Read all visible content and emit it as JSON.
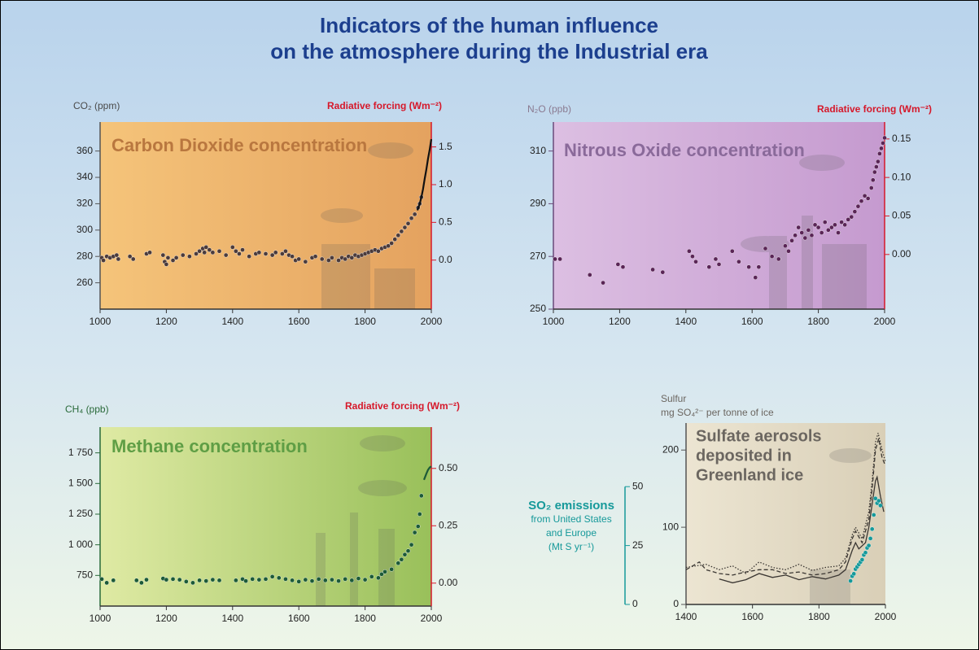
{
  "title": [
    "Indicators of the human influence",
    "on the atmosphere during the Industrial era"
  ],
  "chart_data": [
    {
      "type": "scatter",
      "title": "Carbon Dioxide concentration",
      "title_color": "#b9773f",
      "ylabel": "CO₂ (ppm)",
      "y2label": "Radiative forcing (Wm⁻²)",
      "xlim": [
        1000,
        2000
      ],
      "xticks": [
        1000,
        1200,
        1400,
        1600,
        1800,
        2000
      ],
      "ylim": [
        240,
        382
      ],
      "yticks": [
        260,
        280,
        300,
        320,
        340,
        360
      ],
      "y2lim": [
        -0.65,
        1.83
      ],
      "y2ticks": [
        {
          "value": 0,
          "label": "0.0"
        },
        {
          "value": 0.5,
          "label": "0.5"
        },
        {
          "value": 1,
          "label": "1.0"
        },
        {
          "value": 1.5,
          "label": "1.5"
        }
      ],
      "series": [
        {
          "marker": "dot",
          "color": "#4b3b3b",
          "x": [
            1005,
            1010,
            1020,
            1030,
            1040,
            1050,
            1055,
            1090,
            1100,
            1140,
            1150,
            1190,
            1195,
            1200,
            1205,
            1220,
            1230,
            1250,
            1270,
            1290,
            1300,
            1310,
            1315,
            1320,
            1330,
            1340,
            1360,
            1380,
            1400,
            1410,
            1420,
            1430,
            1450,
            1470,
            1480,
            1500,
            1520,
            1530,
            1550,
            1560,
            1570,
            1580,
            1590,
            1600,
            1620,
            1640,
            1650,
            1670,
            1690,
            1700,
            1720,
            1730,
            1740,
            1750,
            1760,
            1770,
            1780,
            1790,
            1800,
            1810,
            1820,
            1830,
            1840,
            1850,
            1860,
            1870,
            1880,
            1890,
            1900,
            1910,
            1920,
            1930,
            1940,
            1950,
            1960,
            1965,
            1970
          ],
          "values": [
            279,
            277,
            280,
            279,
            280,
            281,
            278,
            280,
            278,
            282,
            283,
            281,
            276,
            274,
            279,
            277,
            279,
            281,
            280,
            282,
            284,
            286,
            283,
            287,
            285,
            283,
            284,
            281,
            287,
            284,
            282,
            285,
            280,
            282,
            283,
            282,
            281,
            283,
            282,
            284,
            281,
            280,
            277,
            278,
            276,
            279,
            280,
            278,
            277,
            279,
            277,
            279,
            278,
            280,
            279,
            281,
            280,
            281,
            282,
            283,
            284,
            285,
            284,
            286,
            287,
            288,
            290,
            293,
            296,
            299,
            302,
            305,
            309,
            312,
            317,
            320,
            325
          ]
        },
        {
          "marker": "line",
          "color": "#111111",
          "x": [
            1958,
            1965,
            1970,
            1975,
            1980,
            1985,
            1990,
            1995,
            2000
          ],
          "values": [
            315,
            320,
            325,
            331,
            339,
            346,
            354,
            361,
            369
          ]
        }
      ]
    },
    {
      "type": "scatter",
      "title": "Nitrous Oxide concentration",
      "title_color": "#8a6a9a",
      "ylabel": "N₂O (ppb)",
      "y2label": "Radiative forcing (Wm⁻²)",
      "xlim": [
        1000,
        2000
      ],
      "xticks": [
        1000,
        1200,
        1400,
        1600,
        1800,
        2000
      ],
      "ylim": [
        250,
        321
      ],
      "yticks": [
        250,
        270,
        290,
        310
      ],
      "y2lim": [
        -0.071,
        0.172
      ],
      "y2ticks": [
        {
          "value": 0,
          "label": "0.00"
        },
        {
          "value": 0.05,
          "label": "0.05"
        },
        {
          "value": 0.1,
          "label": "0.10"
        },
        {
          "value": 0.15,
          "label": "0.15"
        }
      ],
      "series": [
        {
          "marker": "dot",
          "color": "#5a2556",
          "x": [
            1005,
            1020,
            1110,
            1150,
            1195,
            1210,
            1300,
            1330,
            1410,
            1420,
            1430,
            1470,
            1490,
            1500,
            1540,
            1560,
            1590,
            1610,
            1620,
            1640,
            1660,
            1680,
            1700,
            1710,
            1720,
            1730,
            1740,
            1750,
            1760,
            1770,
            1780,
            1790,
            1800,
            1810,
            1820,
            1830,
            1840,
            1850,
            1860,
            1870,
            1880,
            1890,
            1900,
            1910,
            1920,
            1930,
            1940,
            1950,
            1960,
            1965,
            1970,
            1975,
            1980,
            1985,
            1990,
            1995,
            2000
          ],
          "values": [
            269,
            269,
            263,
            260,
            267,
            266,
            265,
            264,
            272,
            270,
            268,
            266,
            269,
            267,
            272,
            268,
            266,
            262,
            266,
            273,
            270,
            269,
            274,
            272,
            276,
            278,
            281,
            279,
            277,
            280,
            278,
            282,
            281,
            279,
            283,
            280,
            281,
            282,
            279,
            283,
            282,
            284,
            285,
            287,
            289,
            291,
            293,
            292,
            296,
            299,
            302,
            304,
            306,
            309,
            311,
            313,
            315
          ]
        }
      ]
    },
    {
      "type": "scatter",
      "title": "Methane concentration",
      "title_color": "#5f9e45",
      "ylabel": "CH₄ (ppb)",
      "y2label": "Radiative forcing (Wm⁻²)",
      "xlim": [
        1000,
        2000
      ],
      "xticks": [
        1000,
        1200,
        1400,
        1600,
        1800,
        2000
      ],
      "ylim": [
        500,
        1960
      ],
      "yticks": [
        750,
        {
          "value": 1000,
          "label": "1 000"
        },
        {
          "value": 1250,
          "label": "1 250"
        },
        {
          "value": 1500,
          "label": "1 500"
        },
        {
          "value": 1750,
          "label": "1 750"
        }
      ],
      "y2lim": [
        -0.1,
        0.68
      ],
      "y2ticks": [
        {
          "value": 0,
          "label": "0.00"
        },
        {
          "value": 0.25,
          "label": "0.25"
        },
        {
          "value": 0.5,
          "label": "0.50"
        }
      ],
      "series": [
        {
          "marker": "dot",
          "color": "#1c5a38",
          "x": [
            1005,
            1020,
            1040,
            1110,
            1125,
            1140,
            1190,
            1200,
            1220,
            1240,
            1260,
            1280,
            1300,
            1320,
            1340,
            1360,
            1410,
            1430,
            1440,
            1460,
            1480,
            1500,
            1520,
            1540,
            1560,
            1580,
            1600,
            1620,
            1640,
            1660,
            1680,
            1700,
            1720,
            1740,
            1760,
            1780,
            1800,
            1820,
            1840,
            1850,
            1860,
            1880,
            1900,
            1910,
            1920,
            1930,
            1940,
            1950,
            1960,
            1965,
            1970
          ],
          "values": [
            720,
            690,
            710,
            710,
            690,
            715,
            725,
            715,
            720,
            715,
            700,
            690,
            710,
            705,
            715,
            710,
            710,
            720,
            705,
            720,
            715,
            720,
            740,
            730,
            720,
            710,
            700,
            715,
            705,
            720,
            710,
            715,
            705,
            720,
            710,
            725,
            715,
            740,
            730,
            760,
            780,
            800,
            850,
            880,
            920,
            950,
            1000,
            1100,
            1150,
            1250,
            1400
          ]
        },
        {
          "marker": "line",
          "color": "#1c5a38",
          "x": [
            1978,
            1985,
            1990,
            1995,
            2000
          ],
          "values": [
            1530,
            1580,
            1610,
            1630,
            1640
          ]
        }
      ]
    },
    {
      "type": "scatter",
      "title": [
        "Sulfate aerosols",
        "deposited in",
        "Greenland ice"
      ],
      "title_color": "#6b6660",
      "ylabel": [
        "Sulfur",
        "mg SO₄²⁻ per tonne of ice"
      ],
      "y2label": [
        "SO₂ emissions",
        "from United States",
        "and Europe",
        "(Mt S yr⁻¹)"
      ],
      "xlim": [
        1400,
        2000
      ],
      "xticks": [
        1400,
        1600,
        1800,
        2000
      ],
      "ylim": [
        0,
        235
      ],
      "yticks": [
        0,
        100,
        200
      ],
      "y2lim": [
        0,
        77
      ],
      "y2ticks": [
        0,
        25,
        50
      ],
      "series": [
        {
          "marker": "line",
          "dash": "solid",
          "color": "#3a3632",
          "x": [
            1500,
            1540,
            1580,
            1620,
            1660,
            1700,
            1740,
            1780,
            1820,
            1860,
            1880,
            1900,
            1910,
            1920,
            1940,
            1950,
            1960,
            1970,
            1975,
            1985,
            1995
          ],
          "values": [
            33,
            28,
            32,
            40,
            35,
            38,
            32,
            36,
            33,
            38,
            45,
            70,
            80,
            72,
            80,
            100,
            130,
            160,
            165,
            140,
            120
          ]
        },
        {
          "marker": "line",
          "dash": "dashed",
          "color": "#3a3632",
          "x": [
            1400,
            1440,
            1460,
            1500,
            1540,
            1580,
            1620,
            1660,
            1700,
            1740,
            1780,
            1820,
            1860,
            1880,
            1900,
            1910,
            1930,
            1950,
            1960,
            1970,
            1980,
            1990,
            2000
          ],
          "values": [
            45,
            55,
            45,
            40,
            38,
            42,
            45,
            45,
            40,
            42,
            38,
            40,
            45,
            55,
            85,
            95,
            80,
            110,
            150,
            200,
            215,
            190,
            180
          ]
        },
        {
          "marker": "line",
          "dash": "dotted",
          "color": "#3a3632",
          "x": [
            1400,
            1460,
            1500,
            1540,
            1580,
            1620,
            1660,
            1700,
            1740,
            1780,
            1820,
            1860,
            1880,
            1900,
            1910,
            1930,
            1950,
            1960,
            1970,
            1978,
            1990,
            2000
          ],
          "values": [
            48,
            52,
            45,
            50,
            40,
            55,
            48,
            45,
            52,
            44,
            48,
            50,
            60,
            90,
            100,
            85,
            120,
            160,
            210,
            222,
            200,
            185
          ]
        },
        {
          "marker": "dot",
          "axis": "y2",
          "color": "#16999a",
          "x": [
            1895,
            1900,
            1905,
            1910,
            1915,
            1920,
            1925,
            1930,
            1935,
            1940,
            1945,
            1950,
            1955,
            1960,
            1965,
            1970,
            1975,
            1980,
            1985
          ],
          "values": [
            10,
            12,
            13,
            15,
            16,
            17,
            18,
            19,
            21,
            22,
            24,
            25,
            28,
            32,
            38,
            45,
            43,
            44,
            42
          ]
        }
      ]
    }
  ]
}
